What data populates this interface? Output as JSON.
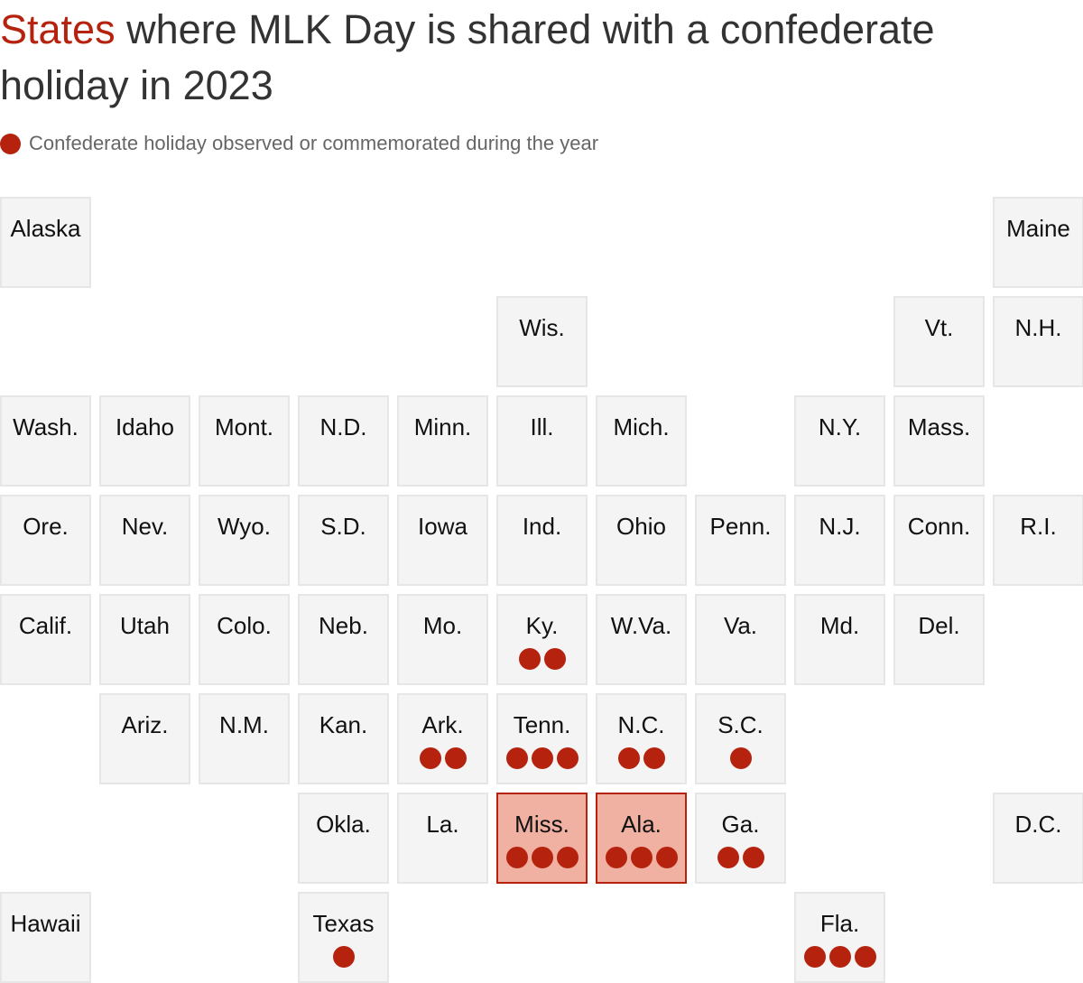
{
  "title": {
    "highlight": "States",
    "rest": " where MLK Day is shared with a confederate holiday in 2023"
  },
  "legend": {
    "label": "Confederate holiday observed or commemorated during the year",
    "color": "#b5230f"
  },
  "chart_data": {
    "type": "tile-map",
    "title": "States where MLK Day is shared with a confederate holiday in 2023",
    "legend": "Confederate holiday observed or commemorated during the year",
    "states": [
      {
        "name": "Alaska",
        "col": 0,
        "row": 0,
        "count": 0
      },
      {
        "name": "Maine",
        "col": 10,
        "row": 0,
        "count": 0
      },
      {
        "name": "Wis.",
        "col": 5,
        "row": 1,
        "count": 0
      },
      {
        "name": "Vt.",
        "col": 9,
        "row": 1,
        "count": 0
      },
      {
        "name": "N.H.",
        "col": 10,
        "row": 1,
        "count": 0
      },
      {
        "name": "Wash.",
        "col": 0,
        "row": 2,
        "count": 0
      },
      {
        "name": "Idaho",
        "col": 1,
        "row": 2,
        "count": 0
      },
      {
        "name": "Mont.",
        "col": 2,
        "row": 2,
        "count": 0
      },
      {
        "name": "N.D.",
        "col": 3,
        "row": 2,
        "count": 0
      },
      {
        "name": "Minn.",
        "col": 4,
        "row": 2,
        "count": 0
      },
      {
        "name": "Ill.",
        "col": 5,
        "row": 2,
        "count": 0
      },
      {
        "name": "Mich.",
        "col": 6,
        "row": 2,
        "count": 0
      },
      {
        "name": "N.Y.",
        "col": 8,
        "row": 2,
        "count": 0
      },
      {
        "name": "Mass.",
        "col": 9,
        "row": 2,
        "count": 0
      },
      {
        "name": "Ore.",
        "col": 0,
        "row": 3,
        "count": 0
      },
      {
        "name": "Nev.",
        "col": 1,
        "row": 3,
        "count": 0
      },
      {
        "name": "Wyo.",
        "col": 2,
        "row": 3,
        "count": 0
      },
      {
        "name": "S.D.",
        "col": 3,
        "row": 3,
        "count": 0
      },
      {
        "name": "Iowa",
        "col": 4,
        "row": 3,
        "count": 0
      },
      {
        "name": "Ind.",
        "col": 5,
        "row": 3,
        "count": 0
      },
      {
        "name": "Ohio",
        "col": 6,
        "row": 3,
        "count": 0
      },
      {
        "name": "Penn.",
        "col": 7,
        "row": 3,
        "count": 0
      },
      {
        "name": "N.J.",
        "col": 8,
        "row": 3,
        "count": 0
      },
      {
        "name": "Conn.",
        "col": 9,
        "row": 3,
        "count": 0
      },
      {
        "name": "R.I.",
        "col": 10,
        "row": 3,
        "count": 0
      },
      {
        "name": "Calif.",
        "col": 0,
        "row": 4,
        "count": 0
      },
      {
        "name": "Utah",
        "col": 1,
        "row": 4,
        "count": 0
      },
      {
        "name": "Colo.",
        "col": 2,
        "row": 4,
        "count": 0
      },
      {
        "name": "Neb.",
        "col": 3,
        "row": 4,
        "count": 0
      },
      {
        "name": "Mo.",
        "col": 4,
        "row": 4,
        "count": 0
      },
      {
        "name": "Ky.",
        "col": 5,
        "row": 4,
        "count": 2
      },
      {
        "name": "W.Va.",
        "col": 6,
        "row": 4,
        "count": 0
      },
      {
        "name": "Va.",
        "col": 7,
        "row": 4,
        "count": 0
      },
      {
        "name": "Md.",
        "col": 8,
        "row": 4,
        "count": 0
      },
      {
        "name": "Del.",
        "col": 9,
        "row": 4,
        "count": 0
      },
      {
        "name": "Ariz.",
        "col": 1,
        "row": 5,
        "count": 0
      },
      {
        "name": "N.M.",
        "col": 2,
        "row": 5,
        "count": 0
      },
      {
        "name": "Kan.",
        "col": 3,
        "row": 5,
        "count": 0
      },
      {
        "name": "Ark.",
        "col": 4,
        "row": 5,
        "count": 2
      },
      {
        "name": "Tenn.",
        "col": 5,
        "row": 5,
        "count": 3
      },
      {
        "name": "N.C.",
        "col": 6,
        "row": 5,
        "count": 2
      },
      {
        "name": "S.C.",
        "col": 7,
        "row": 5,
        "count": 1
      },
      {
        "name": "Okla.",
        "col": 3,
        "row": 6,
        "count": 0
      },
      {
        "name": "La.",
        "col": 4,
        "row": 6,
        "count": 0
      },
      {
        "name": "Miss.",
        "col": 5,
        "row": 6,
        "count": 3,
        "highlight": true
      },
      {
        "name": "Ala.",
        "col": 6,
        "row": 6,
        "count": 3,
        "highlight": true
      },
      {
        "name": "Ga.",
        "col": 7,
        "row": 6,
        "count": 2
      },
      {
        "name": "D.C.",
        "col": 10,
        "row": 6,
        "count": 0
      },
      {
        "name": "Hawaii",
        "col": 0,
        "row": 7,
        "count": 0
      },
      {
        "name": "Texas",
        "col": 3,
        "row": 7,
        "count": 1
      },
      {
        "name": "Fla.",
        "col": 8,
        "row": 7,
        "count": 3
      }
    ]
  }
}
